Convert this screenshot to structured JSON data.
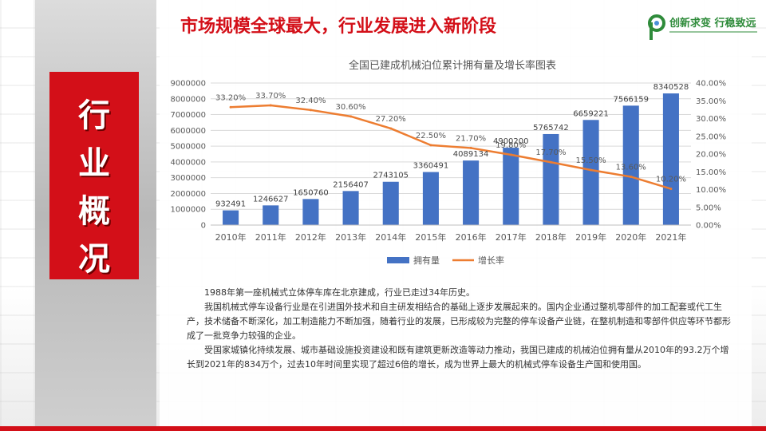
{
  "slide": {
    "title": "市场规模全球最大，行业发展进入新阶段",
    "section_title": [
      "行",
      "业",
      "概",
      "况"
    ],
    "logo": {
      "line1": "创新求变 行稳致远"
    }
  },
  "chart_data": {
    "type": "bar",
    "title": "全国已建成机械泊位累计拥有量及增长率图表",
    "categories": [
      "2010年",
      "2011年",
      "2012年",
      "2013年",
      "2014年",
      "2015年",
      "2016年",
      "2017年",
      "2018年",
      "2019年",
      "2020年",
      "2021年"
    ],
    "series": [
      {
        "name": "拥有量",
        "type": "bar",
        "axis": "left",
        "values": [
          932491,
          1246627,
          1650760,
          2156407,
          2743105,
          3360491,
          4089134,
          4900200,
          5765742,
          6659221,
          7566159,
          8340528
        ],
        "labels": [
          "932491",
          "1246627",
          "1650760",
          "2156407",
          "2743105",
          "3360491",
          "4089134",
          "4900200",
          "5765742",
          "6659221",
          "7566159",
          "8340528"
        ]
      },
      {
        "name": "增长率",
        "type": "line",
        "axis": "right",
        "values": [
          33.2,
          33.7,
          32.4,
          30.6,
          27.2,
          22.5,
          21.7,
          19.8,
          17.7,
          15.5,
          13.6,
          10.2
        ],
        "labels": [
          "33.20%",
          "33.70%",
          "32.40%",
          "30.60%",
          "27.20%",
          "22.50%",
          "21.70%",
          "19.80%",
          "17.70%",
          "15.50%",
          "13.60%",
          "10.20%"
        ]
      }
    ],
    "left_axis": {
      "min": 0,
      "max": 9000000,
      "ticks": [
        "0",
        "1000000",
        "2000000",
        "3000000",
        "4000000",
        "5000000",
        "6000000",
        "7000000",
        "8000000",
        "9000000"
      ]
    },
    "right_axis": {
      "min": 0,
      "max": 40,
      "ticks": [
        "0.00%",
        "5.00%",
        "10.00%",
        "15.00%",
        "20.00%",
        "25.00%",
        "30.00%",
        "35.00%",
        "40.00%"
      ]
    },
    "legend_position": "bottom",
    "colors": {
      "bar": "#4472c4",
      "line": "#ed7d31"
    }
  },
  "text": {
    "p1": "1988年第一座机械式立体停车库在北京建成，行业已走过34年历史。",
    "p2": "我国机械式停车设备行业是在引进国外技术和自主研发相结合的基础上逐步发展起来的。国内企业通过整机零部件的加工配套或代工生产，技术储备不断深化，加工制造能力不断加强，随着行业的发展，已形成较为完整的停车设备产业链，在整机制造和零部件供应等环节都形成了一批竞争力较强的企业。",
    "p3": "受国家城镇化持续发展、城市基础设施投资建设和既有建筑更新改造等动力推动，我国已建成的机械泊位拥有量从2010年的93.2万个增长到2021年的834万个，过去10年时间里实现了超过6倍的增长，成为世界上最大的机械式停车设备生产国和使用国。"
  }
}
